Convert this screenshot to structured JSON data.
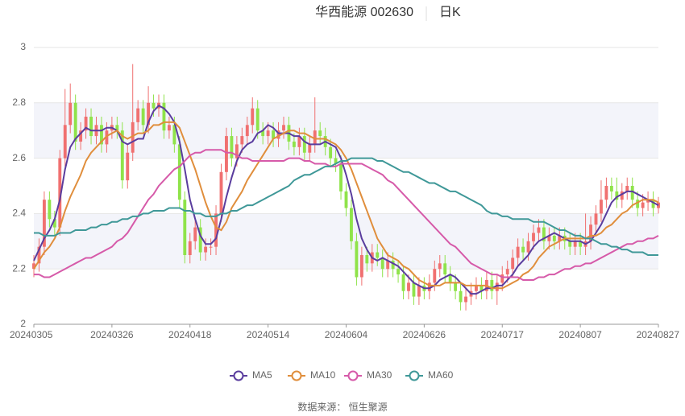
{
  "chart_data": {
    "type": "candlestick",
    "title": "华西能源 002630",
    "subtitle": "日K",
    "source": "数据来源： 恒生聚源",
    "up_color": "#f07070",
    "down_color": "#8fe34a",
    "band_color": "#f3f4fa",
    "ylim": [
      2,
      3
    ],
    "yticks": [
      2,
      2.2,
      2.4,
      2.6,
      2.8,
      3
    ],
    "grid": true,
    "legend": "bottom",
    "categories": [
      "20240305",
      null,
      null,
      null,
      null,
      null,
      null,
      null,
      null,
      null,
      null,
      null,
      null,
      null,
      null,
      "20240326",
      null,
      null,
      null,
      null,
      null,
      null,
      null,
      null,
      null,
      null,
      null,
      null,
      null,
      null,
      "20240418",
      null,
      null,
      null,
      null,
      null,
      null,
      null,
      null,
      null,
      null,
      null,
      null,
      null,
      null,
      "20240514",
      null,
      null,
      null,
      null,
      null,
      null,
      null,
      null,
      null,
      null,
      null,
      null,
      null,
      null,
      "20240604",
      null,
      null,
      null,
      null,
      null,
      null,
      null,
      null,
      null,
      null,
      null,
      null,
      null,
      null,
      "20240626",
      null,
      null,
      null,
      null,
      null,
      null,
      null,
      null,
      null,
      null,
      null,
      null,
      null,
      null,
      "20240717",
      null,
      null,
      null,
      null,
      null,
      null,
      null,
      null,
      null,
      null,
      null,
      null,
      null,
      null,
      "20240807",
      null,
      null,
      null,
      null,
      null,
      null,
      null,
      null,
      null,
      null,
      null,
      null,
      null,
      null,
      "20240827"
    ],
    "open": [
      2.2,
      2.22,
      2.28,
      2.45,
      2.38,
      2.35,
      2.6,
      2.72,
      2.8,
      2.66,
      2.7,
      2.75,
      2.68,
      2.72,
      2.65,
      2.7,
      2.72,
      2.7,
      2.52,
      2.62,
      2.73,
      2.78,
      2.72,
      2.8,
      2.78,
      2.8,
      2.7,
      2.72,
      2.65,
      2.45,
      2.25,
      2.3,
      2.35,
      2.26,
      2.28,
      2.28,
      2.4,
      2.55,
      2.68,
      2.6,
      2.65,
      2.68,
      2.72,
      2.78,
      2.7,
      2.68,
      2.7,
      2.67,
      2.7,
      2.72,
      2.66,
      2.64,
      2.68,
      2.62,
      2.65,
      2.7,
      2.68,
      2.64,
      2.6,
      2.58,
      2.48,
      2.42,
      2.3,
      2.17,
      2.25,
      2.22,
      2.26,
      2.24,
      2.2,
      2.23,
      2.2,
      2.18,
      2.12,
      2.15,
      2.1,
      2.14,
      2.12,
      2.15,
      2.2,
      2.22,
      2.18,
      2.15,
      2.12,
      2.08,
      2.1,
      2.12,
      2.14,
      2.12,
      2.16,
      2.12,
      2.15,
      2.18,
      2.2,
      2.24,
      2.28,
      2.26,
      2.3,
      2.33,
      2.35,
      2.3,
      2.32,
      2.3,
      2.32,
      2.3,
      2.28,
      2.3,
      2.28,
      2.3,
      2.36,
      2.4,
      2.45,
      2.5,
      2.48,
      2.45,
      2.48,
      2.5,
      2.45,
      2.42,
      2.44,
      2.45,
      2.42
    ],
    "close": [
      2.22,
      2.28,
      2.45,
      2.38,
      2.35,
      2.6,
      2.72,
      2.8,
      2.66,
      2.7,
      2.75,
      2.68,
      2.72,
      2.65,
      2.7,
      2.72,
      2.7,
      2.52,
      2.62,
      2.73,
      2.78,
      2.72,
      2.8,
      2.78,
      2.8,
      2.7,
      2.72,
      2.65,
      2.45,
      2.25,
      2.3,
      2.35,
      2.26,
      2.28,
      2.28,
      2.4,
      2.55,
      2.68,
      2.6,
      2.65,
      2.68,
      2.72,
      2.78,
      2.7,
      2.68,
      2.7,
      2.67,
      2.7,
      2.72,
      2.66,
      2.64,
      2.68,
      2.62,
      2.65,
      2.7,
      2.68,
      2.64,
      2.6,
      2.58,
      2.48,
      2.42,
      2.3,
      2.17,
      2.25,
      2.22,
      2.26,
      2.24,
      2.2,
      2.23,
      2.2,
      2.18,
      2.12,
      2.15,
      2.1,
      2.14,
      2.12,
      2.15,
      2.2,
      2.22,
      2.18,
      2.15,
      2.12,
      2.08,
      2.1,
      2.12,
      2.14,
      2.12,
      2.16,
      2.12,
      2.15,
      2.18,
      2.2,
      2.24,
      2.28,
      2.26,
      2.3,
      2.33,
      2.35,
      2.3,
      2.32,
      2.3,
      2.32,
      2.3,
      2.28,
      2.3,
      2.28,
      2.3,
      2.36,
      2.4,
      2.45,
      2.5,
      2.48,
      2.45,
      2.48,
      2.5,
      2.45,
      2.42,
      2.44,
      2.45,
      2.42,
      2.44
    ],
    "high": [
      2.25,
      2.31,
      2.48,
      2.48,
      2.41,
      2.63,
      2.85,
      2.87,
      2.83,
      2.73,
      2.78,
      2.78,
      2.75,
      2.75,
      2.73,
      2.75,
      2.75,
      2.73,
      2.65,
      2.94,
      2.81,
      2.81,
      2.86,
      2.83,
      2.83,
      2.83,
      2.75,
      2.75,
      2.68,
      2.48,
      2.33,
      2.38,
      2.38,
      2.31,
      2.31,
      2.43,
      2.58,
      2.71,
      2.71,
      2.68,
      2.71,
      2.75,
      2.82,
      2.81,
      2.73,
      2.73,
      2.73,
      2.73,
      2.75,
      2.75,
      2.69,
      2.71,
      2.71,
      2.68,
      2.82,
      2.73,
      2.71,
      2.67,
      2.63,
      2.61,
      2.51,
      2.45,
      2.33,
      2.28,
      2.28,
      2.29,
      2.29,
      2.27,
      2.26,
      2.26,
      2.23,
      2.21,
      2.18,
      2.18,
      2.17,
      2.17,
      2.18,
      2.23,
      2.25,
      2.25,
      2.21,
      2.18,
      2.15,
      2.13,
      2.15,
      2.17,
      2.17,
      2.19,
      2.19,
      2.18,
      2.21,
      2.23,
      2.27,
      2.31,
      2.31,
      2.33,
      2.36,
      2.38,
      2.38,
      2.35,
      2.35,
      2.35,
      2.35,
      2.33,
      2.33,
      2.33,
      2.4,
      2.39,
      2.43,
      2.52,
      2.53,
      2.53,
      2.53,
      2.51,
      2.53,
      2.53,
      2.48,
      2.47,
      2.48,
      2.48,
      2.46
    ],
    "low": [
      2.17,
      2.19,
      2.25,
      2.35,
      2.32,
      2.32,
      2.57,
      2.69,
      2.63,
      2.63,
      2.67,
      2.65,
      2.65,
      2.62,
      2.62,
      2.67,
      2.67,
      2.49,
      2.49,
      2.59,
      2.7,
      2.69,
      2.69,
      2.75,
      2.75,
      2.67,
      2.67,
      2.62,
      2.42,
      2.22,
      2.22,
      2.27,
      2.23,
      2.23,
      2.25,
      2.25,
      2.37,
      2.52,
      2.57,
      2.57,
      2.62,
      2.65,
      2.69,
      2.67,
      2.65,
      2.65,
      2.64,
      2.64,
      2.67,
      2.63,
      2.61,
      2.61,
      2.59,
      2.59,
      2.62,
      2.65,
      2.61,
      2.57,
      2.55,
      2.45,
      2.39,
      2.27,
      2.14,
      2.14,
      2.19,
      2.19,
      2.21,
      2.17,
      2.17,
      2.17,
      2.15,
      2.09,
      2.09,
      2.07,
      2.07,
      2.09,
      2.09,
      2.12,
      2.17,
      2.15,
      2.12,
      2.09,
      2.05,
      2.05,
      2.07,
      2.09,
      2.09,
      2.09,
      2.09,
      2.07,
      2.12,
      2.15,
      2.17,
      2.21,
      2.23,
      2.23,
      2.27,
      2.3,
      2.27,
      2.27,
      2.27,
      2.27,
      2.27,
      2.25,
      2.25,
      2.25,
      2.25,
      2.27,
      2.33,
      2.37,
      2.42,
      2.45,
      2.42,
      2.42,
      2.45,
      2.42,
      2.39,
      2.39,
      2.41,
      2.39,
      2.4
    ],
    "series": [
      {
        "name": "MA5",
        "color": "#5a3d9e",
        "values": [
          2.23,
          2.27,
          2.31,
          2.34,
          2.38,
          2.45,
          2.56,
          2.64,
          2.67,
          2.69,
          2.71,
          2.7,
          2.7,
          2.7,
          2.71,
          2.71,
          2.7,
          2.66,
          2.65,
          2.66,
          2.67,
          2.67,
          2.73,
          2.77,
          2.79,
          2.78,
          2.76,
          2.73,
          2.66,
          2.56,
          2.45,
          2.38,
          2.32,
          2.29,
          2.29,
          2.31,
          2.38,
          2.46,
          2.53,
          2.59,
          2.63,
          2.65,
          2.66,
          2.69,
          2.7,
          2.72,
          2.71,
          2.69,
          2.69,
          2.69,
          2.68,
          2.68,
          2.66,
          2.65,
          2.65,
          2.65,
          2.66,
          2.65,
          2.64,
          2.6,
          2.54,
          2.47,
          2.38,
          2.31,
          2.27,
          2.24,
          2.23,
          2.24,
          2.23,
          2.22,
          2.21,
          2.19,
          2.17,
          2.15,
          2.14,
          2.13,
          2.13,
          2.14,
          2.16,
          2.17,
          2.18,
          2.17,
          2.15,
          2.13,
          2.11,
          2.11,
          2.12,
          2.13,
          2.13,
          2.14,
          2.14,
          2.16,
          2.18,
          2.21,
          2.23,
          2.25,
          2.28,
          2.3,
          2.31,
          2.32,
          2.33,
          2.32,
          2.31,
          2.3,
          2.3,
          2.3,
          2.29,
          2.3,
          2.33,
          2.36,
          2.4,
          2.44,
          2.46,
          2.47,
          2.48,
          2.48,
          2.47,
          2.46,
          2.45,
          2.44,
          2.43
        ]
      },
      {
        "name": "MA10",
        "color": "#e08e3c",
        "values": [
          2.2,
          2.23,
          2.26,
          2.28,
          2.31,
          2.35,
          2.41,
          2.46,
          2.5,
          2.54,
          2.59,
          2.62,
          2.64,
          2.66,
          2.68,
          2.69,
          2.7,
          2.68,
          2.67,
          2.68,
          2.69,
          2.69,
          2.7,
          2.72,
          2.72,
          2.73,
          2.73,
          2.73,
          2.71,
          2.66,
          2.61,
          2.56,
          2.5,
          2.44,
          2.39,
          2.35,
          2.34,
          2.37,
          2.42,
          2.45,
          2.48,
          2.52,
          2.55,
          2.58,
          2.61,
          2.64,
          2.67,
          2.68,
          2.69,
          2.7,
          2.7,
          2.69,
          2.69,
          2.68,
          2.67,
          2.67,
          2.67,
          2.66,
          2.65,
          2.63,
          2.6,
          2.56,
          2.51,
          2.46,
          2.41,
          2.36,
          2.31,
          2.28,
          2.25,
          2.24,
          2.23,
          2.21,
          2.2,
          2.18,
          2.16,
          2.15,
          2.14,
          2.14,
          2.14,
          2.15,
          2.15,
          2.15,
          2.15,
          2.14,
          2.14,
          2.14,
          2.14,
          2.14,
          2.13,
          2.13,
          2.13,
          2.14,
          2.15,
          2.16,
          2.18,
          2.19,
          2.21,
          2.24,
          2.26,
          2.28,
          2.29,
          2.3,
          2.31,
          2.31,
          2.31,
          2.31,
          2.31,
          2.32,
          2.32,
          2.33,
          2.35,
          2.36,
          2.38,
          2.4,
          2.41,
          2.43,
          2.44,
          2.45,
          2.45,
          2.45,
          2.44
        ]
      },
      {
        "name": "MA30",
        "color": "#d65aa9",
        "values": [
          2.18,
          2.18,
          2.17,
          2.17,
          2.18,
          2.19,
          2.2,
          2.21,
          2.22,
          2.23,
          2.24,
          2.24,
          2.25,
          2.26,
          2.27,
          2.28,
          2.3,
          2.31,
          2.33,
          2.36,
          2.39,
          2.42,
          2.45,
          2.47,
          2.5,
          2.52,
          2.54,
          2.56,
          2.57,
          2.59,
          2.61,
          2.62,
          2.62,
          2.63,
          2.63,
          2.63,
          2.63,
          2.62,
          2.62,
          2.61,
          2.6,
          2.6,
          2.59,
          2.59,
          2.59,
          2.59,
          2.59,
          2.59,
          2.59,
          2.6,
          2.6,
          2.6,
          2.59,
          2.59,
          2.58,
          2.58,
          2.58,
          2.57,
          2.57,
          2.58,
          2.58,
          2.58,
          2.58,
          2.58,
          2.57,
          2.56,
          2.55,
          2.54,
          2.52,
          2.51,
          2.49,
          2.47,
          2.45,
          2.43,
          2.41,
          2.39,
          2.37,
          2.35,
          2.33,
          2.31,
          2.29,
          2.28,
          2.26,
          2.24,
          2.22,
          2.21,
          2.2,
          2.19,
          2.18,
          2.18,
          2.17,
          2.17,
          2.17,
          2.17,
          2.16,
          2.16,
          2.16,
          2.17,
          2.17,
          2.18,
          2.18,
          2.19,
          2.2,
          2.2,
          2.21,
          2.21,
          2.22,
          2.22,
          2.23,
          2.24,
          2.25,
          2.26,
          2.27,
          2.28,
          2.29,
          2.29,
          2.3,
          2.3,
          2.31,
          2.31,
          2.32
        ]
      },
      {
        "name": "MA60",
        "color": "#3f9898",
        "values": [
          2.33,
          2.33,
          2.32,
          2.32,
          2.32,
          2.33,
          2.33,
          2.33,
          2.34,
          2.34,
          2.34,
          2.35,
          2.35,
          2.36,
          2.36,
          2.37,
          2.37,
          2.38,
          2.38,
          2.39,
          2.39,
          2.4,
          2.4,
          2.41,
          2.41,
          2.41,
          2.42,
          2.42,
          2.42,
          2.41,
          2.41,
          2.4,
          2.4,
          2.39,
          2.39,
          2.39,
          2.4,
          2.4,
          2.41,
          2.41,
          2.42,
          2.43,
          2.43,
          2.44,
          2.45,
          2.46,
          2.47,
          2.48,
          2.49,
          2.5,
          2.52,
          2.53,
          2.54,
          2.54,
          2.55,
          2.56,
          2.57,
          2.57,
          2.58,
          2.59,
          2.59,
          2.6,
          2.6,
          2.6,
          2.6,
          2.6,
          2.59,
          2.59,
          2.58,
          2.57,
          2.56,
          2.55,
          2.55,
          2.54,
          2.53,
          2.52,
          2.51,
          2.51,
          2.5,
          2.49,
          2.48,
          2.48,
          2.47,
          2.46,
          2.45,
          2.44,
          2.43,
          2.41,
          2.4,
          2.4,
          2.39,
          2.39,
          2.38,
          2.38,
          2.38,
          2.38,
          2.37,
          2.37,
          2.37,
          2.36,
          2.35,
          2.34,
          2.34,
          2.33,
          2.32,
          2.32,
          2.31,
          2.31,
          2.3,
          2.29,
          2.29,
          2.28,
          2.28,
          2.27,
          2.27,
          2.26,
          2.26,
          2.26,
          2.25,
          2.25,
          2.25
        ]
      }
    ]
  }
}
